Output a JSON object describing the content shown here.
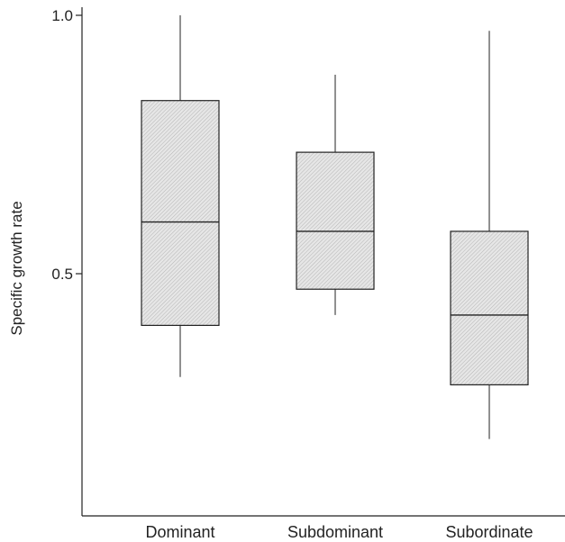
{
  "chart_data": {
    "type": "box",
    "title": "",
    "xlabel": "",
    "ylabel": "Specific growth rate",
    "ylim": [
      0.0,
      1.0
    ],
    "yticks": [
      0.5,
      1.0
    ],
    "ytick_labels": [
      "0.5",
      "1.0"
    ],
    "categories": [
      "Dominant",
      "Subdominant",
      "Subordinate"
    ],
    "boxes": [
      {
        "category": "Dominant",
        "whisker_low": 0.3,
        "q1": 0.4,
        "median": 0.6,
        "q3": 0.835,
        "whisker_high": 1.0
      },
      {
        "category": "Subdominant",
        "whisker_low": 0.42,
        "q1": 0.47,
        "median": 0.582,
        "q3": 0.735,
        "whisker_high": 0.885
      },
      {
        "category": "Subordinate",
        "whisker_low": 0.18,
        "q1": 0.285,
        "median": 0.42,
        "q3": 0.582,
        "whisker_high": 0.97
      }
    ],
    "grid": false,
    "colors": {
      "box_fill": "#d9d9d9",
      "stroke": "#222222"
    }
  }
}
